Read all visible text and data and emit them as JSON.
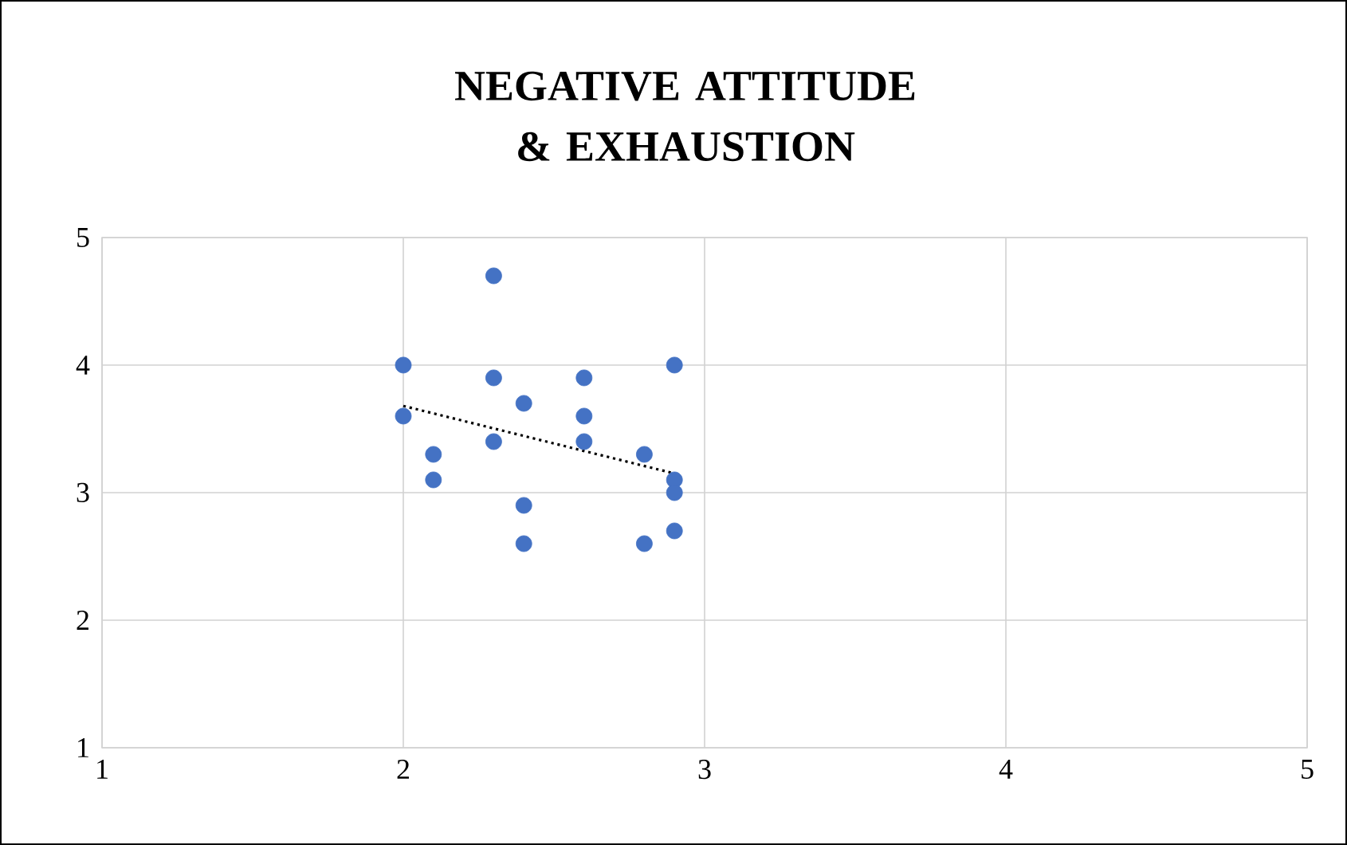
{
  "chart_data": {
    "type": "scatter",
    "title": "NEGATIVE ATTITUDE & EXHAUSTION",
    "xlim": [
      1,
      5
    ],
    "ylim": [
      1,
      5
    ],
    "xticks": [
      1,
      2,
      3,
      4,
      5
    ],
    "yticks": [
      1,
      2,
      3,
      4,
      5
    ],
    "grid": true,
    "series": [
      {
        "type": "scatter",
        "marker": "circle",
        "color": "#4472c4",
        "x": [
          2.0,
          2.0,
          2.1,
          2.1,
          2.3,
          2.3,
          2.3,
          2.4,
          2.4,
          2.4,
          2.6,
          2.6,
          2.6,
          2.8,
          2.8,
          2.9,
          2.9,
          2.9,
          2.9
        ],
        "values": [
          4.0,
          3.6,
          3.3,
          3.1,
          4.7,
          3.9,
          3.4,
          3.7,
          2.9,
          2.6,
          3.9,
          3.6,
          3.4,
          3.3,
          2.6,
          4.0,
          3.1,
          3.0,
          2.7
        ]
      },
      {
        "type": "line",
        "marker": "none",
        "line_style": "dotted",
        "color": "#000000",
        "x": [
          2.0,
          2.9
        ],
        "values": [
          3.68,
          3.15
        ]
      }
    ]
  }
}
